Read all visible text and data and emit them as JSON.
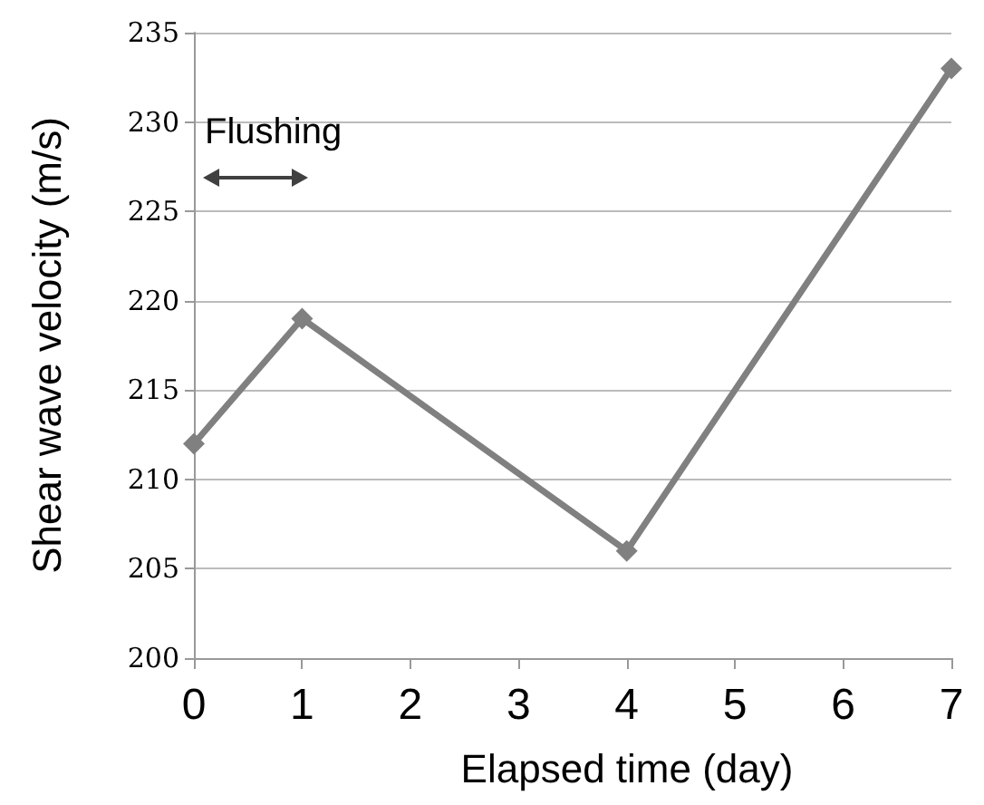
{
  "chart_data": {
    "type": "line",
    "xlabel": "Elapsed time (day)",
    "ylabel": "Shear wave velocity (m/s)",
    "x": [
      0,
      1,
      4,
      7
    ],
    "series": [
      {
        "color": "#808080",
        "values": [
          212,
          219,
          206,
          233
        ]
      }
    ],
    "xlim": [
      0,
      7
    ],
    "xticks": [
      0,
      1,
      2,
      3,
      4,
      5,
      6,
      7
    ],
    "ylim": [
      200,
      235
    ],
    "yticks": [
      200,
      205,
      210,
      215,
      220,
      225,
      230,
      235
    ],
    "grid": "y",
    "marker": "diamond",
    "line_style": "solid",
    "annotations": [
      "Flushing"
    ]
  }
}
